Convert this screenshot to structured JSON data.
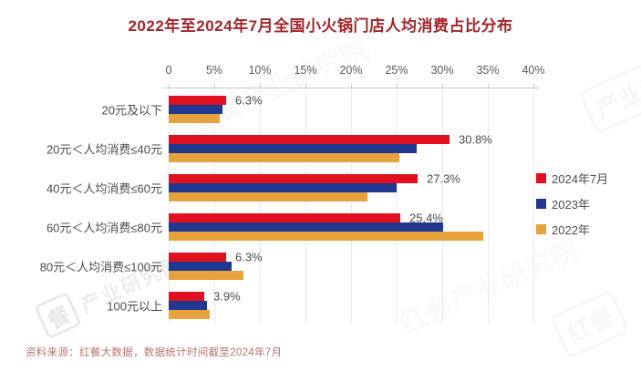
{
  "page": {
    "background": "#ffffff",
    "title_color": "#a3252b",
    "source_color": "#bb7272"
  },
  "footer": {
    "source": "资料来源：红餐大数据，数据统计时间截至2024年7月"
  },
  "watermark": {
    "brand": "红餐",
    "org": "产业研究院",
    "logo_char": "餐",
    "brand_org": "红餐产业研究院"
  },
  "chart_data": {
    "type": "bar",
    "orientation": "horizontal",
    "title": "2022年至2024年7月全国小火锅门店人均消费占比分布",
    "categories": [
      "20元及以下",
      "20元＜人均消费≤40元",
      "40元＜人均消费≤60元",
      "60元＜人均消费≤80元",
      "80元＜人均消费≤100元",
      "100元以上"
    ],
    "series": [
      {
        "name": "2024年7月",
        "color": "#e2101e",
        "values": [
          6.3,
          30.8,
          27.3,
          25.4,
          6.3,
          3.9
        ],
        "labels": [
          "6.3%",
          "30.8%",
          "27.3%",
          "25.4%",
          "6.3%",
          "3.9%"
        ]
      },
      {
        "name": "2023年",
        "color": "#20388f",
        "values": [
          5.9,
          27.2,
          25.0,
          30.1,
          6.9,
          4.2
        ],
        "labels": null
      },
      {
        "name": "2022年",
        "color": "#e6a23c",
        "values": [
          5.6,
          25.3,
          21.8,
          34.5,
          8.2,
          4.5
        ],
        "labels": null
      }
    ],
    "xlim": [
      0,
      40
    ],
    "x_ticks": [
      "0",
      "5%",
      "10%",
      "15%",
      "20%",
      "25%",
      "30%",
      "35%",
      "40%"
    ],
    "x_tick_values": [
      0,
      5,
      10,
      15,
      20,
      25,
      30,
      35,
      40
    ],
    "grid": true,
    "legend_position": "right",
    "unit": "percent"
  }
}
